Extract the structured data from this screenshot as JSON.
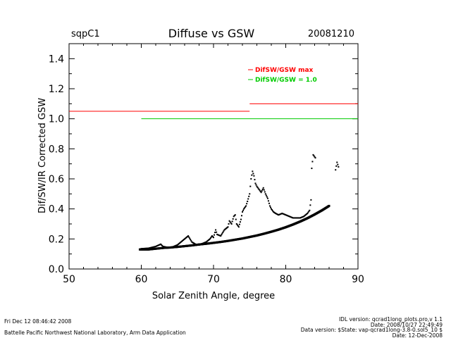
{
  "header": {
    "site": "sqpC1",
    "title": "Diffuse vs GSW",
    "date": "20081210"
  },
  "chart_data": {
    "type": "scatter",
    "title": "Diffuse vs GSW",
    "xlabel": "Solar Zenith Angle, degree",
    "ylabel": "Dif/SW/IR Corrected GSW",
    "xlim": [
      50,
      90
    ],
    "ylim": [
      0.0,
      1.5
    ],
    "xticks": [
      50,
      60,
      70,
      80,
      90
    ],
    "yticks": [
      0.0,
      0.2,
      0.4,
      0.6,
      0.8,
      1.0,
      1.2,
      1.4
    ],
    "ytick_labels": [
      "0.0",
      "0.2",
      "0.4",
      "0.6",
      "0.8",
      "1.0",
      "1.2",
      "1.4"
    ],
    "grid": false,
    "legend_position": "top-right",
    "legend": [
      {
        "label": "DifSW/GSW max",
        "color": "#ff0000"
      },
      {
        "label": "DifSW/GSW = 1.0",
        "color": "#00cc00"
      }
    ],
    "reference_lines": [
      {
        "name": "max_low",
        "color": "#ff0000",
        "x": [
          50,
          75
        ],
        "y": 1.05
      },
      {
        "name": "max_high",
        "color": "#ff0000",
        "x": [
          75,
          90
        ],
        "y": 1.1
      },
      {
        "name": "unity",
        "color": "#00cc00",
        "x": [
          60,
          90
        ],
        "y": 1.0
      }
    ],
    "series": [
      {
        "color": "#000000",
        "lower_band": [
          [
            59.8,
            0.13
          ],
          [
            61,
            0.13
          ],
          [
            62,
            0.135
          ],
          [
            63,
            0.14
          ],
          [
            64,
            0.143
          ],
          [
            65,
            0.147
          ],
          [
            66,
            0.152
          ],
          [
            67,
            0.157
          ],
          [
            68,
            0.163
          ],
          [
            69,
            0.168
          ],
          [
            70,
            0.174
          ],
          [
            71,
            0.18
          ],
          [
            72,
            0.187
          ],
          [
            73,
            0.195
          ],
          [
            74,
            0.203
          ],
          [
            75,
            0.213
          ],
          [
            76,
            0.223
          ],
          [
            77,
            0.235
          ],
          [
            78,
            0.248
          ],
          [
            79,
            0.262
          ],
          [
            80,
            0.278
          ],
          [
            81,
            0.296
          ],
          [
            82,
            0.316
          ],
          [
            83,
            0.338
          ],
          [
            84,
            0.363
          ],
          [
            85,
            0.39
          ],
          [
            86,
            0.42
          ]
        ],
        "upper_branch": [
          [
            60,
            0.135
          ],
          [
            61,
            0.138
          ],
          [
            62,
            0.15
          ],
          [
            62.7,
            0.165
          ],
          [
            63,
            0.15
          ],
          [
            64,
            0.14
          ],
          [
            65,
            0.16
          ],
          [
            66,
            0.2
          ],
          [
            66.5,
            0.22
          ],
          [
            67,
            0.18
          ],
          [
            67.5,
            0.165
          ],
          [
            68,
            0.16
          ],
          [
            68.5,
            0.17
          ],
          [
            69,
            0.18
          ],
          [
            69.5,
            0.2
          ],
          [
            69.8,
            0.22
          ],
          [
            70,
            0.21
          ],
          [
            70.3,
            0.26
          ],
          [
            70.5,
            0.23
          ],
          [
            71,
            0.22
          ],
          [
            71.5,
            0.26
          ],
          [
            72,
            0.28
          ],
          [
            72.2,
            0.32
          ],
          [
            72.5,
            0.3
          ],
          [
            72.8,
            0.35
          ],
          [
            73,
            0.36
          ],
          [
            73.2,
            0.3
          ],
          [
            73.5,
            0.28
          ],
          [
            73.8,
            0.33
          ],
          [
            74,
            0.38
          ],
          [
            74.2,
            0.4
          ],
          [
            74.5,
            0.42
          ],
          [
            74.7,
            0.45
          ],
          [
            75,
            0.5
          ],
          [
            75.2,
            0.6
          ],
          [
            75.4,
            0.65
          ],
          [
            75.6,
            0.62
          ],
          [
            75.8,
            0.57
          ],
          [
            76,
            0.55
          ],
          [
            76.3,
            0.53
          ],
          [
            76.6,
            0.51
          ],
          [
            76.9,
            0.54
          ],
          [
            77.2,
            0.5
          ],
          [
            77.5,
            0.47
          ],
          [
            77.8,
            0.42
          ],
          [
            78,
            0.4
          ],
          [
            78.3,
            0.38
          ],
          [
            78.6,
            0.37
          ],
          [
            79,
            0.36
          ],
          [
            79.5,
            0.37
          ],
          [
            80,
            0.36
          ],
          [
            80.5,
            0.35
          ],
          [
            81,
            0.34
          ],
          [
            81.5,
            0.34
          ],
          [
            82,
            0.34
          ],
          [
            82.5,
            0.35
          ],
          [
            83,
            0.37
          ],
          [
            83.3,
            0.39
          ],
          [
            83.5,
            0.46
          ],
          [
            83.6,
            0.67
          ],
          [
            83.8,
            0.76
          ],
          [
            84.1,
            0.74
          ],
          [
            86.9,
            0.66
          ],
          [
            87.1,
            0.71
          ],
          [
            87.3,
            0.68
          ]
        ]
      }
    ]
  },
  "footer": {
    "left_line1": "Fri Dec 12 08:46:42 2008",
    "left_line2": "Battelle Pacific Northwest National Laboratory, Arm Data Application",
    "right_line1": "IDL version: qcrad1long_plots.pro,v 1.1",
    "right_line2": "Date: 2008/10/27 22:49:49",
    "right_line3": "Data version: $State: vap-qcrad1long-3.8-0.sol5_10 $",
    "right_line4": "Date: 12-Dec-2008"
  }
}
